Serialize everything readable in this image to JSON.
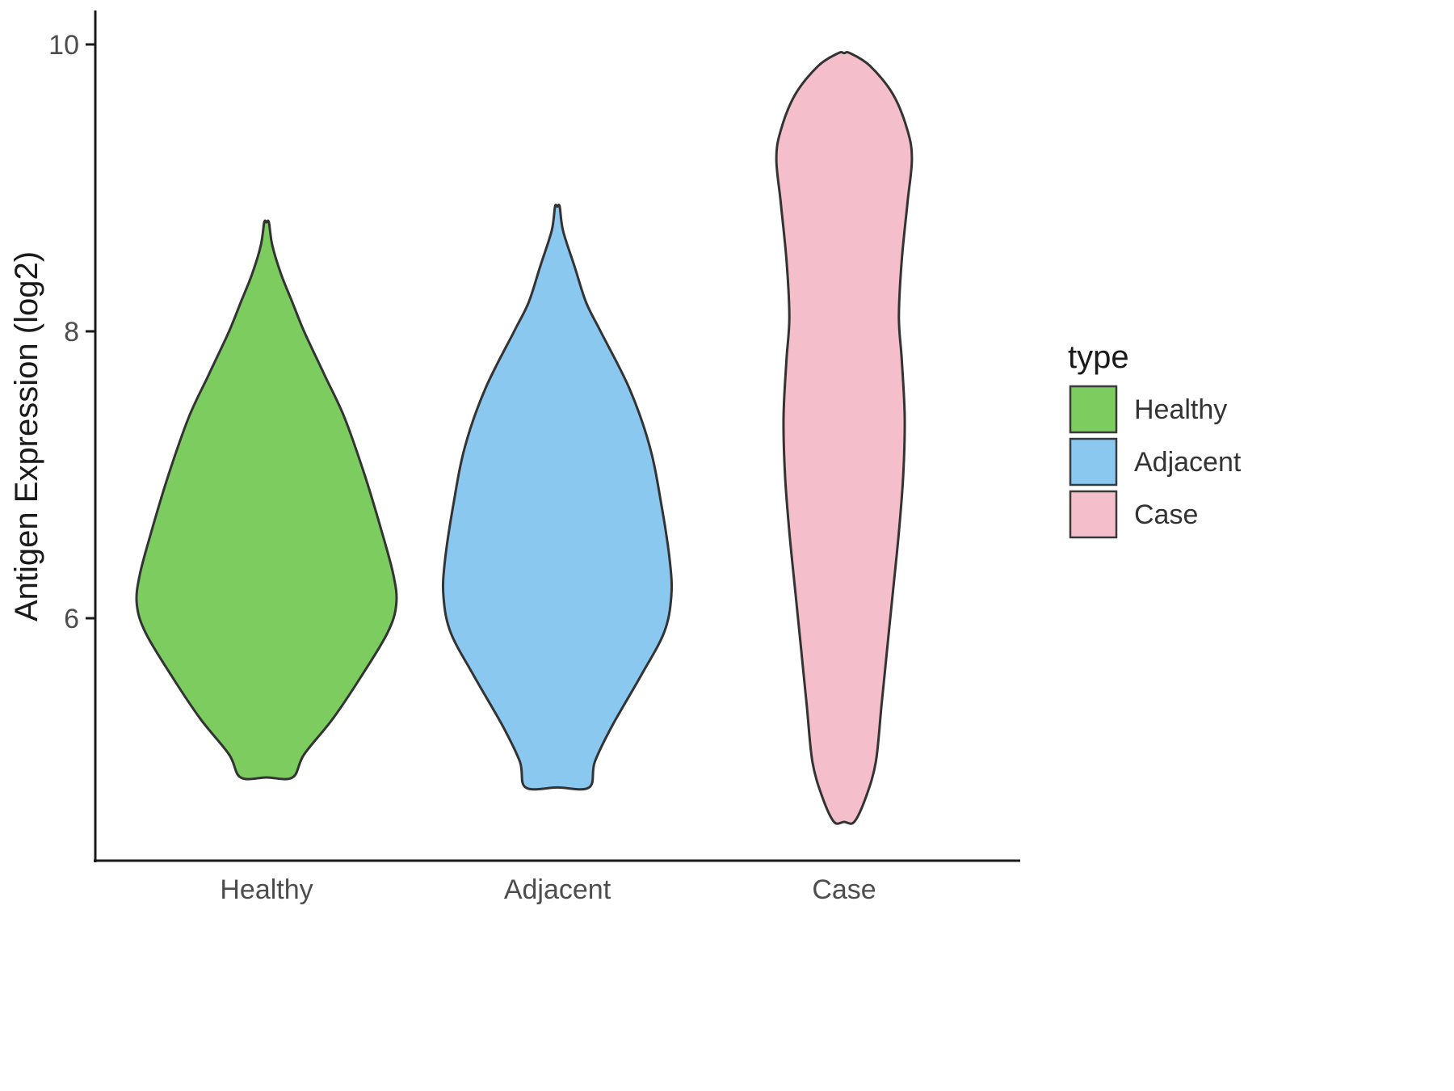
{
  "figure": {
    "background": "#FFFFFF",
    "outline_color": "#333333"
  },
  "chart_data": {
    "type": "violin",
    "title": "",
    "xlabel": "",
    "ylabel": "Antigen Expression (log2)",
    "categories": [
      "Healthy",
      "Adjacent",
      "Case"
    ],
    "y_ticks": [
      6,
      8,
      10
    ],
    "ylim": [
      4.3,
      10.3
    ],
    "grid": "off",
    "legend_position": "right",
    "outline_color": "#333333",
    "legend": {
      "title": "type",
      "entries": [
        {
          "label": "Healthy",
          "color": "#7CCC5F"
        },
        {
          "label": "Adjacent",
          "color": "#8BC8F0"
        },
        {
          "label": "Case",
          "color": "#F4BFCB"
        }
      ]
    },
    "series": [
      {
        "name": "Healthy",
        "color": "#7CCC5F",
        "profile_note": "pairs of [y_value, half_width_in_category_units]",
        "profile": [
          [
            8.76,
            0.008
          ],
          [
            8.6,
            0.02
          ],
          [
            8.4,
            0.05
          ],
          [
            8.2,
            0.09
          ],
          [
            8.0,
            0.13
          ],
          [
            7.7,
            0.2
          ],
          [
            7.4,
            0.27
          ],
          [
            7.0,
            0.34
          ],
          [
            6.6,
            0.4
          ],
          [
            6.3,
            0.44
          ],
          [
            6.1,
            0.45
          ],
          [
            5.9,
            0.42
          ],
          [
            5.6,
            0.33
          ],
          [
            5.3,
            0.23
          ],
          [
            5.05,
            0.13
          ],
          [
            4.89,
            0.09
          ]
        ]
      },
      {
        "name": "Adjacent",
        "color": "#8BC8F0",
        "profile_note": "pairs of [y_value, half_width_in_category_units]",
        "profile": [
          [
            8.87,
            0.008
          ],
          [
            8.7,
            0.02
          ],
          [
            8.45,
            0.06
          ],
          [
            8.2,
            0.1
          ],
          [
            8.0,
            0.15
          ],
          [
            7.6,
            0.25
          ],
          [
            7.2,
            0.32
          ],
          [
            6.8,
            0.36
          ],
          [
            6.4,
            0.39
          ],
          [
            6.15,
            0.395
          ],
          [
            5.9,
            0.37
          ],
          [
            5.6,
            0.29
          ],
          [
            5.25,
            0.19
          ],
          [
            5.0,
            0.13
          ],
          [
            4.82,
            0.11
          ]
        ]
      },
      {
        "name": "Case",
        "color": "#F4BFCB",
        "profile_note": "pairs of [y_value, half_width_in_category_units]",
        "profile": [
          [
            9.94,
            0.02
          ],
          [
            9.85,
            0.09
          ],
          [
            9.65,
            0.17
          ],
          [
            9.4,
            0.22
          ],
          [
            9.2,
            0.235
          ],
          [
            8.9,
            0.22
          ],
          [
            8.5,
            0.2
          ],
          [
            8.1,
            0.19
          ],
          [
            7.8,
            0.2
          ],
          [
            7.4,
            0.21
          ],
          [
            7.0,
            0.205
          ],
          [
            6.6,
            0.19
          ],
          [
            6.2,
            0.17
          ],
          [
            5.8,
            0.15
          ],
          [
            5.4,
            0.13
          ],
          [
            5.0,
            0.11
          ],
          [
            4.75,
            0.075
          ],
          [
            4.58,
            0.035
          ]
        ]
      }
    ]
  }
}
